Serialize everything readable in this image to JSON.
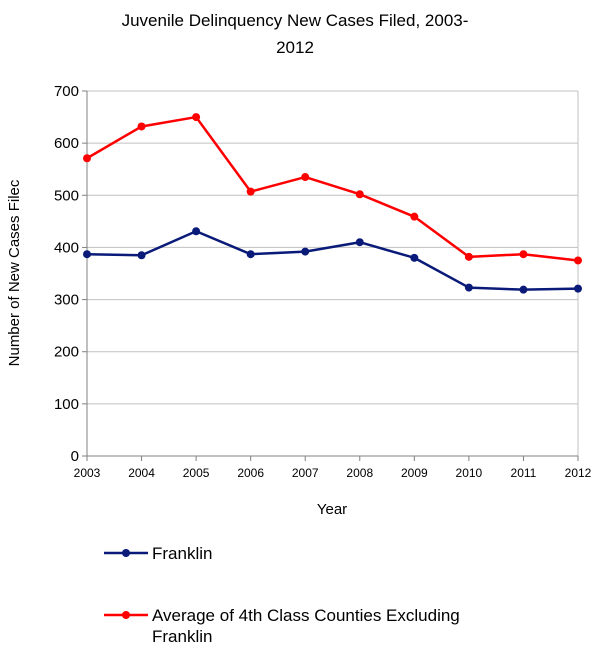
{
  "chart_data": {
    "type": "line",
    "title_lines": [
      "Juvenile Delinquency New Cases Filed, 2003-",
      "2012"
    ],
    "xlabel": "Year",
    "ylabel": "Number of New Cases Filed",
    "ylabel_visible": "Number of New Cases Filec",
    "categories": [
      "2003",
      "2004",
      "2005",
      "2006",
      "2007",
      "2008",
      "2009",
      "2010",
      "2011",
      "2012"
    ],
    "ylim": [
      0,
      700
    ],
    "yticks": [
      "0",
      "100",
      "200",
      "300",
      "400",
      "500",
      "600",
      "700"
    ],
    "grid": "horizontal",
    "legend_position": "bottom",
    "series": [
      {
        "name": "Franklin",
        "color": "#0a1a78",
        "values": [
          387,
          385,
          431,
          387,
          392,
          410,
          380,
          323,
          319,
          321
        ]
      },
      {
        "name": "Average of 4th Class Counties Excluding Franklin",
        "name_lines": [
          "Average of 4th Class Counties Excluding",
          "Franklin"
        ],
        "color": "#ff0000",
        "values": [
          571,
          632,
          650,
          507,
          535,
          502,
          459,
          382,
          387,
          375
        ]
      }
    ]
  }
}
